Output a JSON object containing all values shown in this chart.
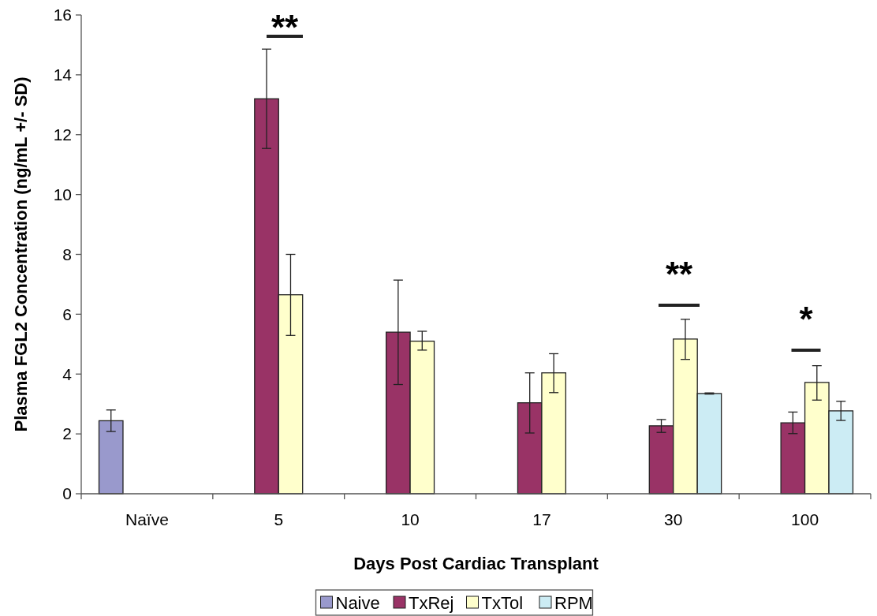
{
  "chart_data": {
    "type": "bar",
    "xlabel": "Days Post Cardiac Transplant",
    "ylabel": "Plasma FGL2 Concentration (ng/mL +/- SD)",
    "categories": [
      "Naïve",
      "5",
      "10",
      "17",
      "30",
      "100"
    ],
    "series": [
      {
        "name": "Naive",
        "color": "#9999cc",
        "values": [
          2.44,
          null,
          null,
          null,
          null,
          null
        ],
        "errors": [
          [
            2.08,
            2.8
          ],
          null,
          null,
          null,
          null,
          null
        ]
      },
      {
        "name": "TxRej",
        "color": "#993366",
        "values": [
          null,
          13.2,
          5.4,
          3.04,
          2.27,
          2.37
        ],
        "errors": [
          null,
          [
            11.54,
            14.86
          ],
          [
            3.65,
            7.14
          ],
          [
            2.03,
            4.04
          ],
          [
            2.05,
            2.48
          ],
          [
            2.01,
            2.73
          ]
        ]
      },
      {
        "name": "TxTol",
        "color": "#ffffcc",
        "values": [
          null,
          6.65,
          5.1,
          4.04,
          5.17,
          3.72
        ],
        "errors": [
          null,
          [
            5.29,
            8.0
          ],
          [
            4.8,
            5.43
          ],
          [
            3.38,
            4.68
          ],
          [
            4.49,
            5.83
          ],
          [
            3.13,
            4.28
          ]
        ]
      },
      {
        "name": "RPM",
        "color": "#ccecf4",
        "values": [
          null,
          null,
          null,
          null,
          3.35,
          2.77
        ],
        "errors": [
          null,
          null,
          null,
          null,
          [
            3.33,
            3.37
          ],
          [
            2.45,
            3.09
          ]
        ]
      }
    ],
    "ylim": [
      0,
      16
    ],
    "yticks": [
      0,
      2,
      4,
      6,
      8,
      10,
      12,
      14,
      16
    ],
    "grid": false,
    "legend": "bottom",
    "annotations": [
      "**",
      "**",
      "*"
    ]
  }
}
